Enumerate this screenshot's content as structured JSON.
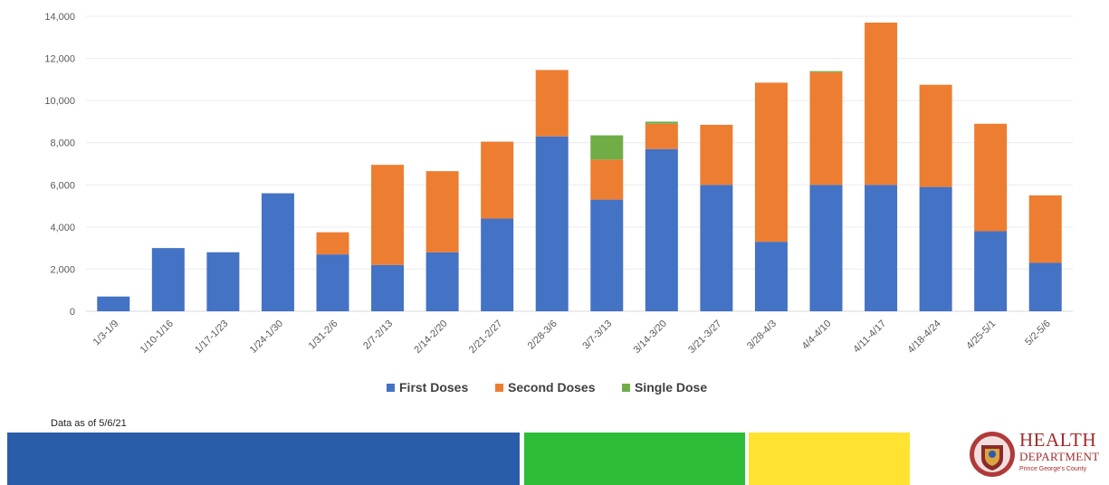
{
  "chart_data": {
    "type": "bar",
    "stacked": true,
    "categories": [
      "1/3-1/9",
      "1/10-1/16",
      "1/17-1/23",
      "1/24-1/30",
      "1/31-2/6",
      "2/7-2/13",
      "2/14-2/20",
      "2/21-2/27",
      "2/28-3/6",
      "3/7-3/13",
      "3/14-3/20",
      "3/21-3/27",
      "3/28-4/3",
      "4/4-4/10",
      "4/11-4/17",
      "4/18-4/24",
      "4/25-5/1",
      "5/2-5/6"
    ],
    "series": [
      {
        "name": "First Doses",
        "color": "#4472c4",
        "values": [
          700,
          3000,
          2800,
          5600,
          2700,
          2200,
          2800,
          4400,
          8300,
          5300,
          7700,
          6000,
          3300,
          6000,
          6000,
          5900,
          3800,
          2300
        ]
      },
      {
        "name": "Second Doses",
        "color": "#ed7d31",
        "values": [
          0,
          0,
          0,
          0,
          1050,
          4750,
          3850,
          3650,
          3150,
          1900,
          1200,
          2850,
          7550,
          5350,
          7700,
          4850,
          5100,
          3200
        ]
      },
      {
        "name": "Single Dose",
        "color": "#70ad47",
        "values": [
          0,
          0,
          0,
          0,
          0,
          0,
          0,
          0,
          0,
          1150,
          100,
          0,
          0,
          50,
          0,
          0,
          0,
          0
        ]
      }
    ],
    "yticks": [
      "0",
      "2,000",
      "4,000",
      "6,000",
      "8,000",
      "10,000",
      "12,000",
      "14,000"
    ],
    "ylim": [
      0,
      14000
    ],
    "grid": true,
    "legend_position": "bottom"
  },
  "footnote": "Data as of 5/6/21",
  "bands": {
    "blue": "#2a5caa",
    "green": "#2ebd38",
    "yellow": "#ffe330"
  },
  "logo": {
    "title": "HEALTH",
    "subtitle": "DEPARTMENT",
    "county": "Prince George's County"
  }
}
